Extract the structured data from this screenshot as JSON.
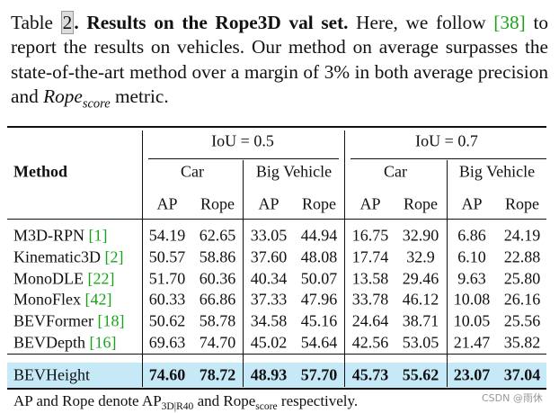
{
  "caption": {
    "prefix": "Table",
    "number": "2",
    "title": ". Results on the Rope3D val set.",
    "text_before_ref": "Here, we follow",
    "ref": "[38]",
    "text_after_ref": "to report the results on vehicles. Our method on average surpasses the state-of-the-art method over a margin of 3% in both average precision and",
    "metric": "Rope",
    "metric_sub": "score",
    "text_end": "metric."
  },
  "table": {
    "method_header": "Method",
    "iou_headers": [
      "IoU = 0.5",
      "IoU = 0.7"
    ],
    "class_headers": [
      "Car",
      "Big Vehicle",
      "Car",
      "Big Vehicle"
    ],
    "metric_headers": [
      "AP",
      "Rope",
      "AP",
      "Rope",
      "AP",
      "Rope",
      "AP",
      "Rope"
    ],
    "rows": [
      {
        "method": "M3D-RPN",
        "ref": "[1]",
        "values": [
          "54.19",
          "62.65",
          "33.05",
          "44.94",
          "16.75",
          "32.90",
          "6.86",
          "24.19"
        ]
      },
      {
        "method": "Kinematic3D",
        "ref": "[2]",
        "values": [
          "50.57",
          "58.86",
          "37.60",
          "48.08",
          "17.74",
          "32.9",
          "6.10",
          "22.88"
        ]
      },
      {
        "method": "MonoDLE",
        "ref": "[22]",
        "values": [
          "51.70",
          "60.36",
          "40.34",
          "50.07",
          "13.58",
          "29.46",
          "9.63",
          "25.80"
        ]
      },
      {
        "method": "MonoFlex",
        "ref": "[42]",
        "values": [
          "60.33",
          "66.86",
          "37.33",
          "47.96",
          "33.78",
          "46.12",
          "10.08",
          "26.16"
        ]
      },
      {
        "method": "BEVFormer",
        "ref": "[18]",
        "values": [
          "50.62",
          "58.78",
          "34.58",
          "45.16",
          "24.64",
          "38.71",
          "10.05",
          "25.56"
        ]
      },
      {
        "method": "BEVDepth",
        "ref": "[16]",
        "values": [
          "69.63",
          "74.70",
          "45.02",
          "54.64",
          "42.56",
          "53.05",
          "21.47",
          "35.82"
        ]
      }
    ],
    "ours": {
      "method": "BEVHeight",
      "values": [
        "74.60",
        "78.72",
        "48.93",
        "57.70",
        "45.73",
        "55.62",
        "23.07",
        "37.04"
      ]
    }
  },
  "footnote": {
    "text1": "AP and Rope denote",
    "ap": "AP",
    "ap_sub": "3D|R40",
    "text2": "and",
    "rope": "Rope",
    "rope_sub": "score",
    "text3": "respectively."
  },
  "watermark": "CSDN @雨休"
}
